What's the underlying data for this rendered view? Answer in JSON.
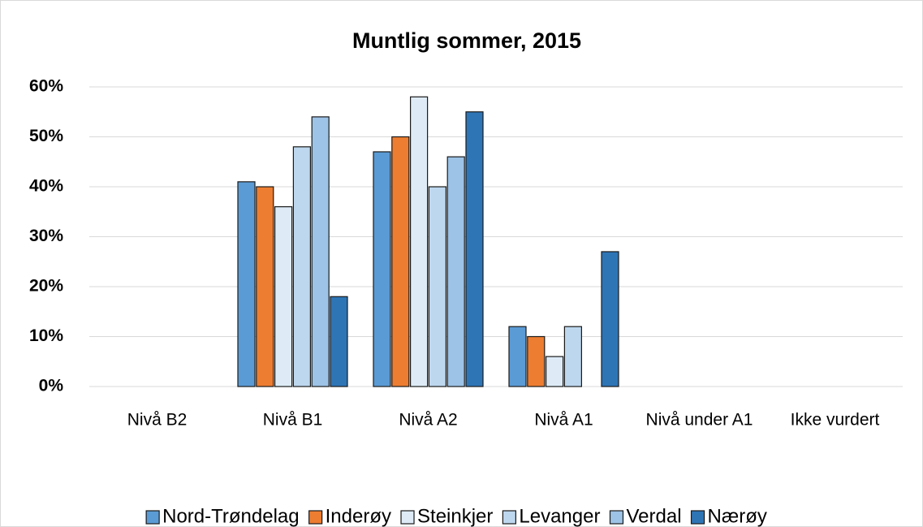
{
  "chart_data": {
    "type": "bar",
    "title": "Muntlig sommer, 2015",
    "categories": [
      "Nivå B2",
      "Nivå B1",
      "Nivå A2",
      "Nivå A1",
      "Nivå under A1",
      "Ikke vurdert"
    ],
    "series": [
      {
        "name": "Nord-Trøndelag",
        "color": "#5b9bd5",
        "values": [
          0,
          41,
          47,
          12,
          0,
          0
        ]
      },
      {
        "name": "Inderøy",
        "color": "#ed7d31",
        "values": [
          0,
          40,
          50,
          10,
          0,
          0
        ]
      },
      {
        "name": "Steinkjer",
        "color": "#deebf7",
        "values": [
          0,
          36,
          58,
          6,
          0,
          0
        ]
      },
      {
        "name": "Levanger",
        "color": "#bdd7ee",
        "values": [
          0,
          48,
          40,
          12,
          0,
          0
        ]
      },
      {
        "name": "Verdal",
        "color": "#9dc3e6",
        "values": [
          0,
          54,
          46,
          0,
          0,
          0
        ]
      },
      {
        "name": "Nærøy",
        "color": "#2e75b6",
        "values": [
          0,
          18,
          55,
          27,
          0,
          0
        ]
      }
    ],
    "ylim": [
      0,
      60
    ],
    "yticks": [
      {
        "value": 0,
        "label": "0%"
      },
      {
        "value": 10,
        "label": "10%"
      },
      {
        "value": 20,
        "label": "20%"
      },
      {
        "value": 30,
        "label": "30%"
      },
      {
        "value": 40,
        "label": "40%"
      },
      {
        "value": 50,
        "label": "50%"
      },
      {
        "value": 60,
        "label": "60%"
      }
    ],
    "grid": true,
    "legend": "bottom"
  }
}
